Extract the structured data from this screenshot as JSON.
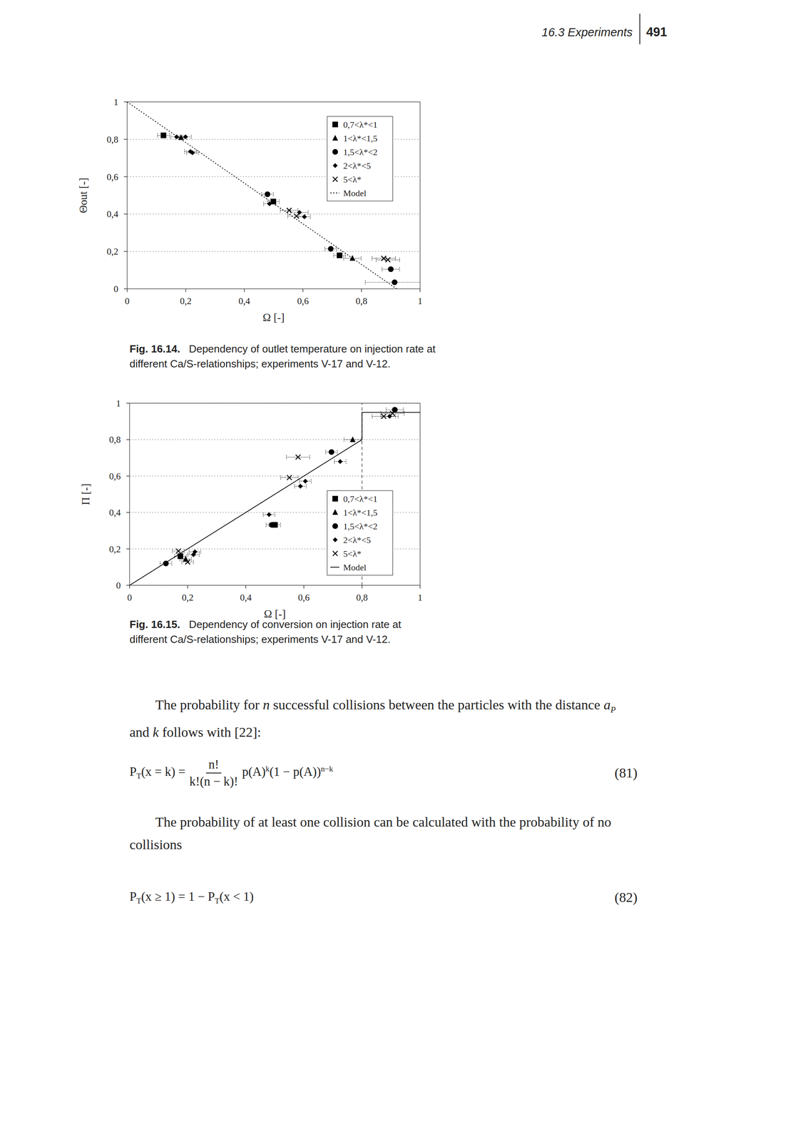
{
  "header": {
    "section": "16.3 Experiments",
    "page": "491"
  },
  "chart_data": [
    {
      "type": "scatter",
      "xlabel": "Ω [-]",
      "ylabel": "Θout [-]",
      "xlim": [
        0,
        1
      ],
      "ylim": [
        0,
        1
      ],
      "xticks": [
        0,
        {
          "value": 0.2,
          "label": "0,2"
        },
        {
          "value": 0.4,
          "label": "0,4"
        },
        {
          "value": 0.6,
          "label": "0,6"
        },
        {
          "value": 0.8,
          "label": "0,8"
        },
        1
      ],
      "yticks": [
        0,
        {
          "value": 0.2,
          "label": "0,2"
        },
        {
          "value": 0.4,
          "label": "0,4"
        },
        {
          "value": 0.6,
          "label": "0,6"
        },
        {
          "value": 0.8,
          "label": "0,8"
        },
        1
      ],
      "grid": true,
      "legend": "upper right",
      "series": [
        {
          "name": "0,7<λ*<1",
          "marker": "square",
          "color": "#000000",
          "x": [
            0.124,
            0.499,
            0.725
          ],
          "values": [
            0.821,
            0.467,
            0.179
          ],
          "x_err": [
            0.02,
            0.02,
            0.02
          ]
        },
        {
          "name": "1<λ*<1,5",
          "marker": "triangle",
          "color": "#000000",
          "x": [
            0.184,
            0.769
          ],
          "values": [
            0.809,
            0.163
          ],
          "x_err": [
            0.02,
            0.03
          ]
        },
        {
          "name": "1,5<λ*<2",
          "marker": "circle",
          "color": "#000000",
          "x": [
            0.479,
            0.695,
            0.9,
            0.913
          ],
          "values": [
            0.506,
            0.214,
            0.105,
            0.035
          ],
          "x_err": [
            0.02,
            0.02,
            0.03,
            0.1
          ]
        },
        {
          "name": "2<λ*<5",
          "marker": "diamond",
          "color": "#000000",
          "x": [
            0.169,
            0.199,
            0.216,
            0.223,
            0.486,
            0.588,
            0.605
          ],
          "values": [
            0.813,
            0.813,
            0.735,
            0.728,
            0.455,
            0.409,
            0.385
          ],
          "x_err": [
            0.02,
            0.02,
            0.02,
            0.02,
            0.02,
            0.03,
            0.02
          ]
        },
        {
          "name": "5<λ*",
          "marker": "x",
          "color": "#000000",
          "x": [
            0.553,
            0.578,
            0.876,
            0.89
          ],
          "values": [
            0.42,
            0.389,
            0.163,
            0.155
          ],
          "x_err": [
            0.03,
            0.03,
            0.04,
            0.04
          ]
        },
        {
          "name": "Model",
          "type": "line",
          "line_style": "dotted",
          "color": "#000000",
          "x": [
            0,
            0.92
          ],
          "values": [
            1,
            0
          ]
        }
      ]
    },
    {
      "type": "scatter",
      "xlabel": "Ω [-]",
      "ylabel": "Π [-]",
      "xlim": [
        0,
        1
      ],
      "ylim": [
        0,
        1
      ],
      "xticks": [
        0,
        {
          "value": 0.2,
          "label": "0,2"
        },
        {
          "value": 0.4,
          "label": "0,4"
        },
        {
          "value": 0.6,
          "label": "0,6"
        },
        {
          "value": 0.8,
          "label": "0,8"
        },
        1
      ],
      "yticks": [
        0,
        {
          "value": 0.2,
          "label": "0,2"
        },
        {
          "value": 0.4,
          "label": "0,4"
        },
        {
          "value": 0.6,
          "label": "0,6"
        },
        {
          "value": 0.8,
          "label": "0,8"
        },
        1
      ],
      "grid": true,
      "legend": "lower right",
      "vline": 0.8,
      "series": [
        {
          "name": "0,7<λ*<1",
          "marker": "square",
          "color": "#000000",
          "x": [
            0.175,
            0.5
          ],
          "values": [
            0.16,
            0.332
          ],
          "x_err": [
            0.02,
            0.02
          ]
        },
        {
          "name": "1<λ*<1,5",
          "marker": "triangle",
          "color": "#000000",
          "x": [
            0.193,
            0.768
          ],
          "values": [
            0.144,
            0.8
          ],
          "x_err": [
            0.02,
            0.03
          ]
        },
        {
          "name": "1,5<λ*<2",
          "marker": "circle",
          "color": "#000000",
          "x": [
            0.125,
            0.49,
            0.695,
            0.913
          ],
          "values": [
            0.12,
            0.332,
            0.732,
            0.964
          ],
          "x_err": [
            0.02,
            0.02,
            0.02,
            0.03
          ]
        },
        {
          "name": "2<λ*<5",
          "marker": "diamond",
          "color": "#000000",
          "x": [
            0.22,
            0.225,
            0.48,
            0.588,
            0.605,
            0.725,
            0.895
          ],
          "values": [
            0.168,
            0.184,
            0.388,
            0.544,
            0.572,
            0.68,
            0.928
          ],
          "x_err": [
            0.02,
            0.02,
            0.02,
            0.02,
            0.02,
            0.02,
            0.03
          ]
        },
        {
          "name": "5<λ*",
          "marker": "x",
          "color": "#000000",
          "x": [
            0.168,
            0.2,
            0.55,
            0.58,
            0.875,
            0.905
          ],
          "values": [
            0.188,
            0.128,
            0.592,
            0.704,
            0.928,
            0.944
          ],
          "x_err": [
            0.02,
            0.02,
            0.03,
            0.04,
            0.04,
            0.04
          ]
        },
        {
          "name": "Model",
          "type": "line",
          "line_style": "solid",
          "color": "#000000",
          "x": [
            0,
            0.8,
            0.8,
            1
          ],
          "values": [
            0,
            0.8,
            0.95,
            0.95
          ]
        }
      ]
    }
  ],
  "figures": [
    {
      "label": "Fig. 16.14.",
      "lines": [
        "Dependency of outlet temperature on injection rate at",
        "different Ca/S-relationships; experiments V-17 and V-12."
      ]
    },
    {
      "label": "Fig. 16.15.",
      "lines": [
        "Dependency of conversion on injection rate at",
        "different Ca/S-relationships; experiments V-17 and V-12."
      ]
    }
  ],
  "paragraphs": [
    {
      "runs": [
        {
          "text": "The probability for "
        },
        {
          "text": "n",
          "italic": true
        },
        {
          "text": " successful collisions between the particles with the distance "
        },
        {
          "text": "a",
          "italic": true
        },
        {
          "text": "P",
          "italic": true,
          "sub": true
        },
        {
          "text": " and "
        },
        {
          "text": "k",
          "italic": true
        },
        {
          "text": " follows with [22]:"
        }
      ]
    },
    {
      "runs": [
        {
          "text": "The probability of at least one collision can be calculated with the probability of no collisions"
        }
      ]
    }
  ],
  "equations": [
    {
      "number": "(81)",
      "parts": [
        {
          "text": "P"
        },
        {
          "text": "T",
          "sub": true
        },
        {
          "text": "(x = k) ="
        },
        {
          "num": "n!",
          "den": "k!(n − k)!"
        },
        {
          "text": "p(A)"
        },
        {
          "text": "k",
          "sup": true
        },
        {
          "text": "(1 − p(A))"
        },
        {
          "text": "n−k",
          "sup": true
        }
      ]
    },
    {
      "number": "(82)",
      "parts": [
        {
          "text": "P"
        },
        {
          "text": "T",
          "sub": true
        },
        {
          "text": "(x ≥ 1) = 1 − P"
        },
        {
          "text": "T",
          "sub": true
        },
        {
          "text": "(x < 1)"
        }
      ]
    }
  ]
}
